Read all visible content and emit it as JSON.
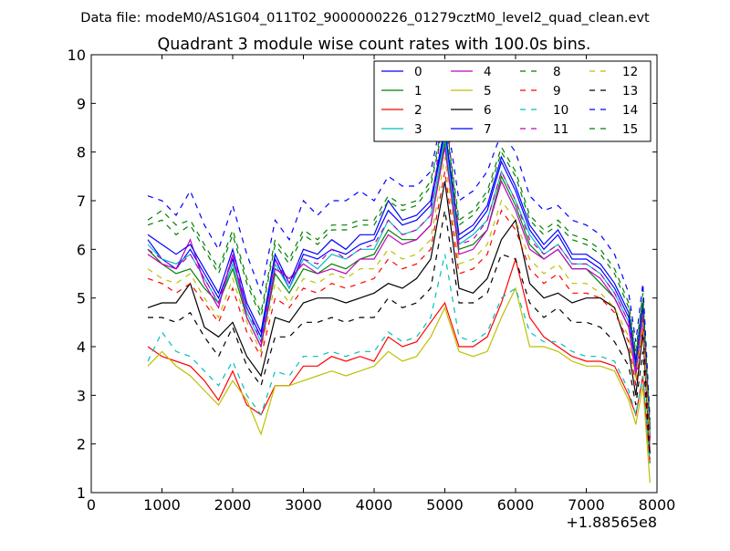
{
  "header": {
    "data_file": "Data file: modeM0/AS1G04_011T02_9000000226_01279cztM0_level2_quad_clean.evt"
  },
  "chart_data": {
    "type": "line",
    "title": "Quadrant 3 module wise count rates with 100.0s bins.",
    "xlabel": "",
    "ylabel": "",
    "x_offset_label": "+1.88565e8",
    "xlim": [
      0,
      8000
    ],
    "ylim": [
      1,
      10
    ],
    "xticks": [
      0,
      1000,
      2000,
      3000,
      4000,
      5000,
      6000,
      7000,
      8000
    ],
    "yticks": [
      1,
      2,
      3,
      4,
      5,
      6,
      7,
      8,
      9,
      10
    ],
    "xtick_labels": [
      "0",
      "1000",
      "2000",
      "3000",
      "4000",
      "5000",
      "6000",
      "7000",
      "8000"
    ],
    "ytick_labels": [
      "1",
      "2",
      "3",
      "4",
      "5",
      "6",
      "7",
      "8",
      "9",
      "10"
    ],
    "grid": false,
    "legend_position": "top-right",
    "legend_columns": 4,
    "x": [
      800,
      1000,
      1200,
      1400,
      1600,
      1800,
      2000,
      2200,
      2400,
      2600,
      2800,
      3000,
      3200,
      3400,
      3600,
      3800,
      4000,
      4200,
      4400,
      4600,
      4800,
      5000,
      5200,
      5400,
      5600,
      5800,
      6000,
      6200,
      6400,
      6600,
      6800,
      7000,
      7200,
      7400,
      7600,
      7700,
      7800,
      7900
    ],
    "series": [
      {
        "name": "0",
        "color": "#0000ff",
        "dash": "solid",
        "values": [
          6.2,
          5.8,
          5.6,
          6.0,
          5.5,
          5.0,
          5.8,
          4.8,
          4.2,
          5.8,
          5.2,
          5.9,
          5.8,
          6.0,
          5.9,
          6.1,
          6.2,
          6.8,
          6.5,
          6.6,
          6.9,
          8.4,
          6.2,
          6.4,
          6.8,
          7.8,
          7.2,
          6.4,
          6.0,
          6.3,
          5.8,
          5.8,
          5.6,
          5.2,
          4.6,
          3.6,
          4.8,
          2.2
        ]
      },
      {
        "name": "1",
        "color": "#008000",
        "dash": "solid",
        "values": [
          6.0,
          5.7,
          5.5,
          5.6,
          5.2,
          4.9,
          5.6,
          4.6,
          4.0,
          5.5,
          5.1,
          5.6,
          5.5,
          5.7,
          5.6,
          5.8,
          5.9,
          6.4,
          6.2,
          6.2,
          6.5,
          8.2,
          6.0,
          6.1,
          6.4,
          7.5,
          6.9,
          6.1,
          5.8,
          6.0,
          5.6,
          5.6,
          5.3,
          5.0,
          4.4,
          3.5,
          4.6,
          2.1
        ]
      },
      {
        "name": "2",
        "color": "#ff0000",
        "dash": "solid",
        "values": [
          4.0,
          3.8,
          3.7,
          3.6,
          3.3,
          2.9,
          3.5,
          2.8,
          2.6,
          3.2,
          3.2,
          3.6,
          3.6,
          3.8,
          3.7,
          3.8,
          3.7,
          4.2,
          4.0,
          4.1,
          4.5,
          4.9,
          4.0,
          4.0,
          4.2,
          4.9,
          5.8,
          4.6,
          4.2,
          4.0,
          3.8,
          3.7,
          3.7,
          3.6,
          3.0,
          2.6,
          3.4,
          1.6
        ]
      },
      {
        "name": "3",
        "color": "#00bfbf",
        "dash": "solid",
        "values": [
          6.1,
          5.8,
          5.7,
          5.9,
          5.4,
          4.9,
          5.7,
          4.7,
          4.1,
          5.7,
          5.2,
          5.8,
          5.6,
          5.9,
          5.8,
          6.0,
          6.0,
          6.6,
          6.3,
          6.4,
          6.7,
          8.3,
          6.1,
          6.3,
          6.6,
          7.6,
          7.0,
          6.3,
          5.9,
          6.1,
          5.7,
          5.7,
          5.5,
          5.1,
          4.5,
          3.5,
          4.7,
          2.1
        ]
      },
      {
        "name": "4",
        "color": "#bf00bf",
        "dash": "solid",
        "values": [
          5.9,
          5.7,
          5.6,
          6.2,
          5.3,
          4.8,
          5.9,
          4.6,
          4.0,
          5.6,
          5.4,
          5.7,
          5.5,
          5.6,
          5.5,
          5.8,
          5.8,
          6.3,
          6.1,
          6.2,
          6.5,
          8.1,
          5.9,
          6.0,
          6.4,
          7.4,
          6.8,
          6.0,
          5.8,
          6.0,
          5.6,
          5.6,
          5.4,
          5.0,
          4.4,
          3.4,
          4.6,
          2.0
        ]
      },
      {
        "name": "5",
        "color": "#bfbf00",
        "dash": "solid",
        "values": [
          3.6,
          3.9,
          3.6,
          3.4,
          3.1,
          2.8,
          3.3,
          2.9,
          2.2,
          3.2,
          3.2,
          3.3,
          3.4,
          3.5,
          3.4,
          3.5,
          3.6,
          3.9,
          3.7,
          3.8,
          4.2,
          4.8,
          3.9,
          3.8,
          3.9,
          4.6,
          5.2,
          4.0,
          4.0,
          3.9,
          3.7,
          3.6,
          3.6,
          3.5,
          2.9,
          2.4,
          3.2,
          1.2
        ]
      },
      {
        "name": "6",
        "color": "#000000",
        "dash": "solid",
        "values": [
          4.8,
          4.9,
          4.9,
          5.3,
          4.4,
          4.2,
          4.5,
          3.8,
          3.4,
          4.6,
          4.5,
          4.9,
          5.0,
          5.0,
          4.9,
          5.0,
          5.1,
          5.3,
          5.2,
          5.4,
          5.8,
          7.4,
          5.2,
          5.1,
          5.4,
          6.2,
          6.6,
          5.3,
          5.0,
          5.1,
          4.9,
          5.0,
          5.0,
          4.8,
          3.9,
          3.0,
          4.3,
          1.8
        ]
      },
      {
        "name": "7",
        "color": "#0000ff",
        "dash": "solid",
        "values": [
          6.3,
          6.1,
          5.9,
          6.1,
          5.6,
          5.1,
          6.0,
          4.9,
          4.3,
          5.9,
          5.3,
          6.0,
          5.9,
          6.2,
          6.0,
          6.3,
          6.3,
          7.0,
          6.6,
          6.7,
          7.0,
          8.5,
          6.3,
          6.5,
          6.9,
          7.9,
          7.3,
          6.5,
          6.1,
          6.4,
          5.9,
          5.9,
          5.7,
          5.3,
          4.7,
          3.7,
          4.9,
          2.3
        ]
      },
      {
        "name": "8",
        "color": "#008000",
        "dash": "dashed",
        "values": [
          6.6,
          6.8,
          6.5,
          6.6,
          6.1,
          5.6,
          6.4,
          5.4,
          4.7,
          6.2,
          5.8,
          6.4,
          6.2,
          6.5,
          6.5,
          6.6,
          6.6,
          7.1,
          6.9,
          7.0,
          7.4,
          8.8,
          6.6,
          6.8,
          7.2,
          8.1,
          7.6,
          6.7,
          6.4,
          6.6,
          6.3,
          6.2,
          6.0,
          5.6,
          4.9,
          3.9,
          5.1,
          2.4
        ]
      },
      {
        "name": "9",
        "color": "#ff0000",
        "dash": "dashed",
        "values": [
          5.4,
          5.3,
          5.1,
          5.3,
          4.9,
          4.5,
          5.2,
          4.3,
          3.8,
          5.0,
          4.8,
          5.2,
          5.1,
          5.3,
          5.2,
          5.3,
          5.4,
          5.8,
          5.6,
          5.7,
          6.0,
          7.6,
          5.5,
          5.6,
          5.9,
          6.8,
          6.4,
          5.6,
          5.3,
          5.5,
          5.1,
          5.1,
          5.0,
          4.7,
          4.1,
          3.2,
          4.4,
          1.9
        ]
      },
      {
        "name": "10",
        "color": "#00bfbf",
        "dash": "dashed",
        "values": [
          3.7,
          4.3,
          3.9,
          3.8,
          3.5,
          3.2,
          3.7,
          3.0,
          2.6,
          3.5,
          3.4,
          3.8,
          3.8,
          3.9,
          3.8,
          3.9,
          3.9,
          4.3,
          4.1,
          4.2,
          4.6,
          5.9,
          4.2,
          4.1,
          4.3,
          5.0,
          5.2,
          4.3,
          4.1,
          4.1,
          3.9,
          3.8,
          3.8,
          3.7,
          3.1,
          2.6,
          3.4,
          1.6
        ]
      },
      {
        "name": "11",
        "color": "#bf00bf",
        "dash": "dashed",
        "values": [
          6.0,
          5.8,
          5.6,
          5.9,
          5.4,
          4.9,
          5.9,
          4.8,
          4.1,
          5.8,
          5.3,
          5.8,
          5.7,
          6.0,
          5.8,
          6.0,
          6.1,
          6.6,
          6.3,
          6.4,
          6.7,
          9.1,
          6.1,
          6.2,
          6.6,
          7.6,
          7.0,
          6.2,
          5.9,
          6.1,
          5.7,
          5.7,
          5.5,
          5.1,
          4.5,
          3.5,
          4.7,
          2.1
        ]
      },
      {
        "name": "12",
        "color": "#bfbf00",
        "dash": "dashed",
        "values": [
          5.6,
          5.4,
          5.3,
          5.5,
          5.0,
          4.6,
          5.4,
          4.5,
          3.9,
          5.3,
          4.9,
          5.4,
          5.3,
          5.5,
          5.4,
          5.6,
          5.6,
          6.0,
          5.8,
          5.9,
          6.2,
          7.9,
          5.7,
          5.8,
          6.1,
          7.0,
          6.6,
          5.8,
          5.5,
          5.7,
          5.3,
          5.3,
          5.1,
          4.8,
          4.2,
          3.3,
          4.5,
          2.0
        ]
      },
      {
        "name": "13",
        "color": "#000000",
        "dash": "dashed",
        "values": [
          4.6,
          4.6,
          4.5,
          4.7,
          4.2,
          3.8,
          4.4,
          3.6,
          3.2,
          4.2,
          4.2,
          4.5,
          4.5,
          4.6,
          4.5,
          4.6,
          4.6,
          5.0,
          4.8,
          4.9,
          5.2,
          6.8,
          4.9,
          4.9,
          5.1,
          5.9,
          5.8,
          4.9,
          4.6,
          4.8,
          4.5,
          4.5,
          4.4,
          4.1,
          3.6,
          2.8,
          3.9,
          1.7
        ]
      },
      {
        "name": "14",
        "color": "#0000ff",
        "dash": "dashed",
        "values": [
          7.1,
          7.0,
          6.7,
          7.2,
          6.5,
          6.0,
          6.9,
          5.9,
          5.1,
          6.6,
          6.2,
          7.0,
          6.7,
          7.0,
          7.0,
          7.2,
          7.0,
          7.5,
          7.3,
          7.3,
          7.6,
          9.0,
          7.0,
          7.2,
          7.6,
          8.4,
          8.0,
          7.1,
          6.8,
          6.9,
          6.6,
          6.5,
          6.3,
          5.9,
          5.1,
          4.1,
          5.3,
          2.5
        ]
      },
      {
        "name": "15",
        "color": "#008000",
        "dash": "dashed",
        "values": [
          6.5,
          6.6,
          6.3,
          6.5,
          6.0,
          5.5,
          6.3,
          5.3,
          4.6,
          6.1,
          5.7,
          6.3,
          6.1,
          6.4,
          6.4,
          6.5,
          6.5,
          7.0,
          6.8,
          6.9,
          7.3,
          8.7,
          6.5,
          6.7,
          7.1,
          8.0,
          7.5,
          6.6,
          6.3,
          6.5,
          6.2,
          6.1,
          5.9,
          5.5,
          4.8,
          3.8,
          5.0,
          2.3
        ]
      }
    ]
  }
}
